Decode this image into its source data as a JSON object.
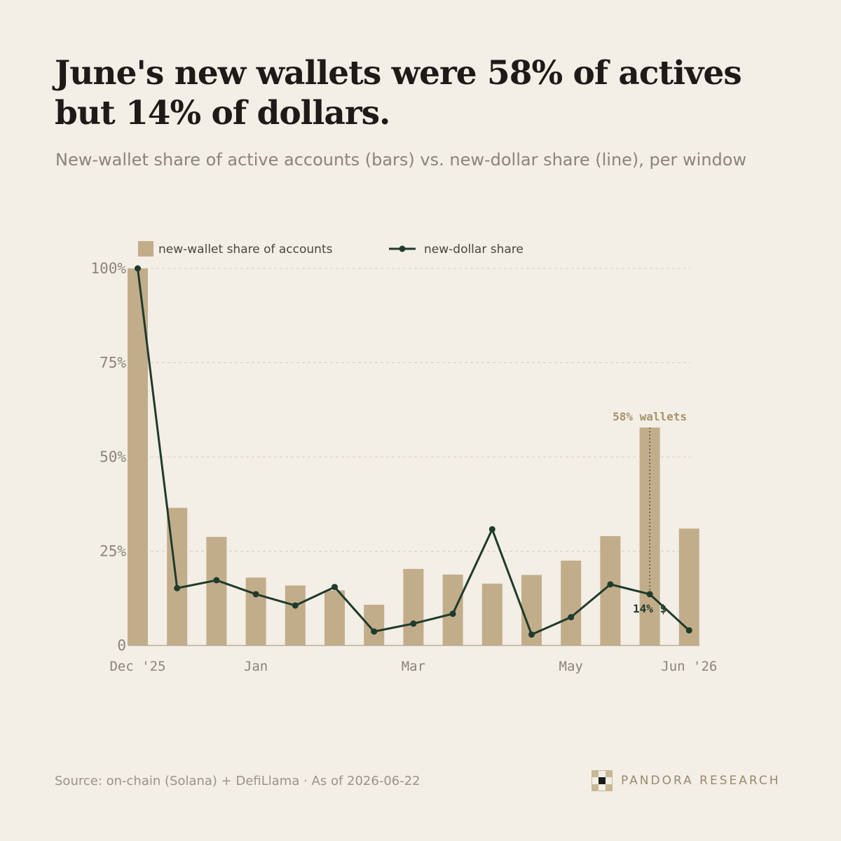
{
  "header": {
    "title": "June's new wallets were 58% of actives but 14% of dollars.",
    "subtitle": "New-wallet share of active accounts (bars) vs. new-dollar share (line), per window"
  },
  "legend": {
    "bars_label": "new-wallet share of accounts",
    "line_label": "new-dollar share"
  },
  "annotations": {
    "wallets": "58% wallets",
    "dollars": "14% $"
  },
  "footer": {
    "source": "Source: on-chain (Solana) + DefiLlama · As of 2026-06-22",
    "brand": "PANDORA RESEARCH"
  },
  "colors": {
    "background": "#f3eee6",
    "bar": "#c2ad8a",
    "line": "#1f3b2c",
    "grid": "#d6cfc4",
    "axis": "#b9ad97"
  },
  "chart_data": {
    "type": "bar",
    "windows": 15,
    "x_tick_labels": [
      {
        "index": 0,
        "label": "Dec '25"
      },
      {
        "index": 3,
        "label": "Jan"
      },
      {
        "index": 7,
        "label": "Mar"
      },
      {
        "index": 11,
        "label": "May"
      },
      {
        "index": 14,
        "label": "Jun '26"
      }
    ],
    "y_ticks": [
      {
        "value": 0,
        "label": "0"
      },
      {
        "value": 25,
        "label": "25%"
      },
      {
        "value": 50,
        "label": "50%"
      },
      {
        "value": 75,
        "label": "75%"
      },
      {
        "value": 100,
        "label": "100%"
      }
    ],
    "ylim": [
      0,
      100
    ],
    "grid": true,
    "legend_position": "top-left",
    "series": [
      {
        "name": "new-wallet share of accounts",
        "type": "bar",
        "values": [
          100,
          36.5,
          28.8,
          18,
          15.9,
          14.6,
          10.8,
          20.3,
          18.8,
          16.4,
          18.7,
          22.5,
          29,
          57.8,
          31
        ]
      },
      {
        "name": "new-dollar share",
        "type": "line",
        "values": [
          100,
          15.2,
          17.3,
          13.6,
          10.6,
          15.5,
          3.7,
          5.8,
          8.4,
          30.8,
          2.9,
          7.5,
          16.2,
          13.6,
          4
        ]
      }
    ],
    "highlight_index": 13
  }
}
